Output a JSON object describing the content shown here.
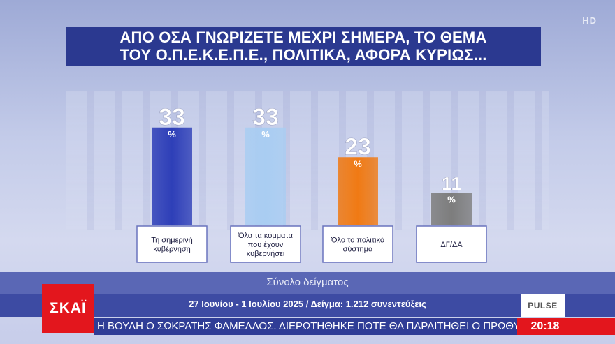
{
  "title": {
    "line1": "ΑΠΟ ΟΣΑ ΓΝΩΡΙΖΕΤΕ ΜΕΧΡΙ ΣΗΜΕΡΑ, ΤΟ ΘΕΜΑ",
    "line2": "ΤΟΥ Ο.Π.Ε.Κ.Ε.Π.Ε., ΠΟΛΙΤΙΚΑ, ΑΦΟΡΑ ΚΥΡΙΩΣ..."
  },
  "chart_data": {
    "type": "bar",
    "title": "ΑΠΟ ΟΣΑ ΓΝΩΡΙΖΕΤΕ ΜΕΧΡΙ ΣΗΜΕΡΑ, ΤΟ ΘΕΜΑ ΤΟΥ Ο.Π.Ε.Κ.Ε.Π.Ε., ΠΟΛΙΤΙΚΑ, ΑΦΟΡΑ ΚΥΡΙΩΣ...",
    "categories": [
      [
        "Τη σημερινή",
        "κυβέρνηση"
      ],
      [
        "Όλα τα κόμματα",
        "που έχουν",
        "κυβερνήσει"
      ],
      [
        "Όλο το πολιτικό",
        "σύστημα"
      ],
      [
        "ΔΓ/ΔΑ"
      ]
    ],
    "values": [
      33,
      33,
      23,
      11
    ],
    "unit": "%",
    "colors": [
      "#2e3fb8",
      "#a9cdf2",
      "#f07a14",
      "#7d7d7d"
    ],
    "ylim": [
      0,
      40
    ],
    "grid": false,
    "legend": "none",
    "xlabel": "Σύνολο δείγματος"
  },
  "sample_label": "Σύνολο δείγματος",
  "footer": {
    "dates": "27 Ιουνίου - 1 Ιουλίου 2025 / Δείγμα: 1.212 συνεντεύξεις",
    "pollster": "PULSE"
  },
  "channel": {
    "logo": "ΣΚΑΪ",
    "hd": "HD"
  },
  "ticker": {
    "text": "Η ΒΟΥΛΗ Ο ΣΩΚΡΑΤΗΣ ΦΑΜΕΛΛΟΣ. ΔΙΕΡΩΤΗΘΗΚΕ ΠΟΤΕ ΘΑ ΠΑΡΑΙΤΗΘΕΙ Ο ΠΡΩΘΥΠΟΥΡΓΟΣ",
    "time": "20:18"
  }
}
